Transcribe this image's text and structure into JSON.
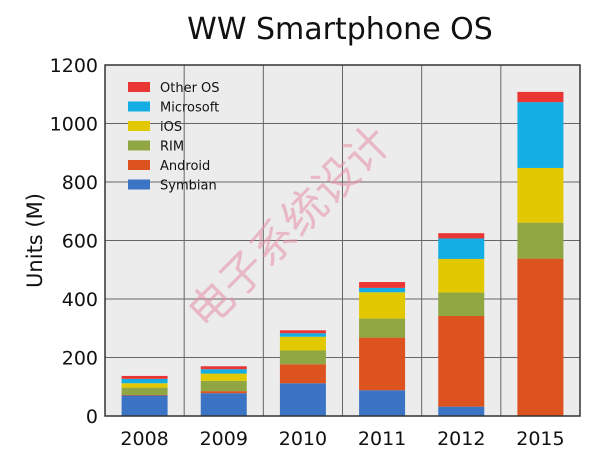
{
  "chart_data": {
    "type": "bar",
    "stacked": true,
    "title": "WW Smartphone OS",
    "xlabel": "",
    "ylabel": "Units (M)",
    "ylim": [
      0,
      1200
    ],
    "yticks": [
      0,
      200,
      400,
      600,
      800,
      1000,
      1200
    ],
    "grid": true,
    "legend_position": "top-left",
    "categories": [
      "2008",
      "2009",
      "2010",
      "2011",
      "2012",
      "2015"
    ],
    "series": [
      {
        "name": "Symbian",
        "color": "#3b74c4",
        "values": [
          70,
          78,
          112,
          88,
          32,
          0
        ]
      },
      {
        "name": "Android",
        "color": "#dc5320",
        "values": [
          2,
          7,
          65,
          180,
          310,
          538
        ]
      },
      {
        "name": "RIM",
        "color": "#8fa642",
        "values": [
          25,
          35,
          47,
          65,
          80,
          123
        ]
      },
      {
        "name": "iOS",
        "color": "#e2c800",
        "values": [
          15,
          25,
          47,
          90,
          115,
          187
        ]
      },
      {
        "name": "Microsoft",
        "color": "#14aee5",
        "values": [
          15,
          15,
          12,
          15,
          70,
          225
        ]
      },
      {
        "name": "Other OS",
        "color": "#ea3535",
        "values": [
          10,
          10,
          10,
          20,
          18,
          35
        ]
      }
    ],
    "watermark": "电子系统设计"
  }
}
